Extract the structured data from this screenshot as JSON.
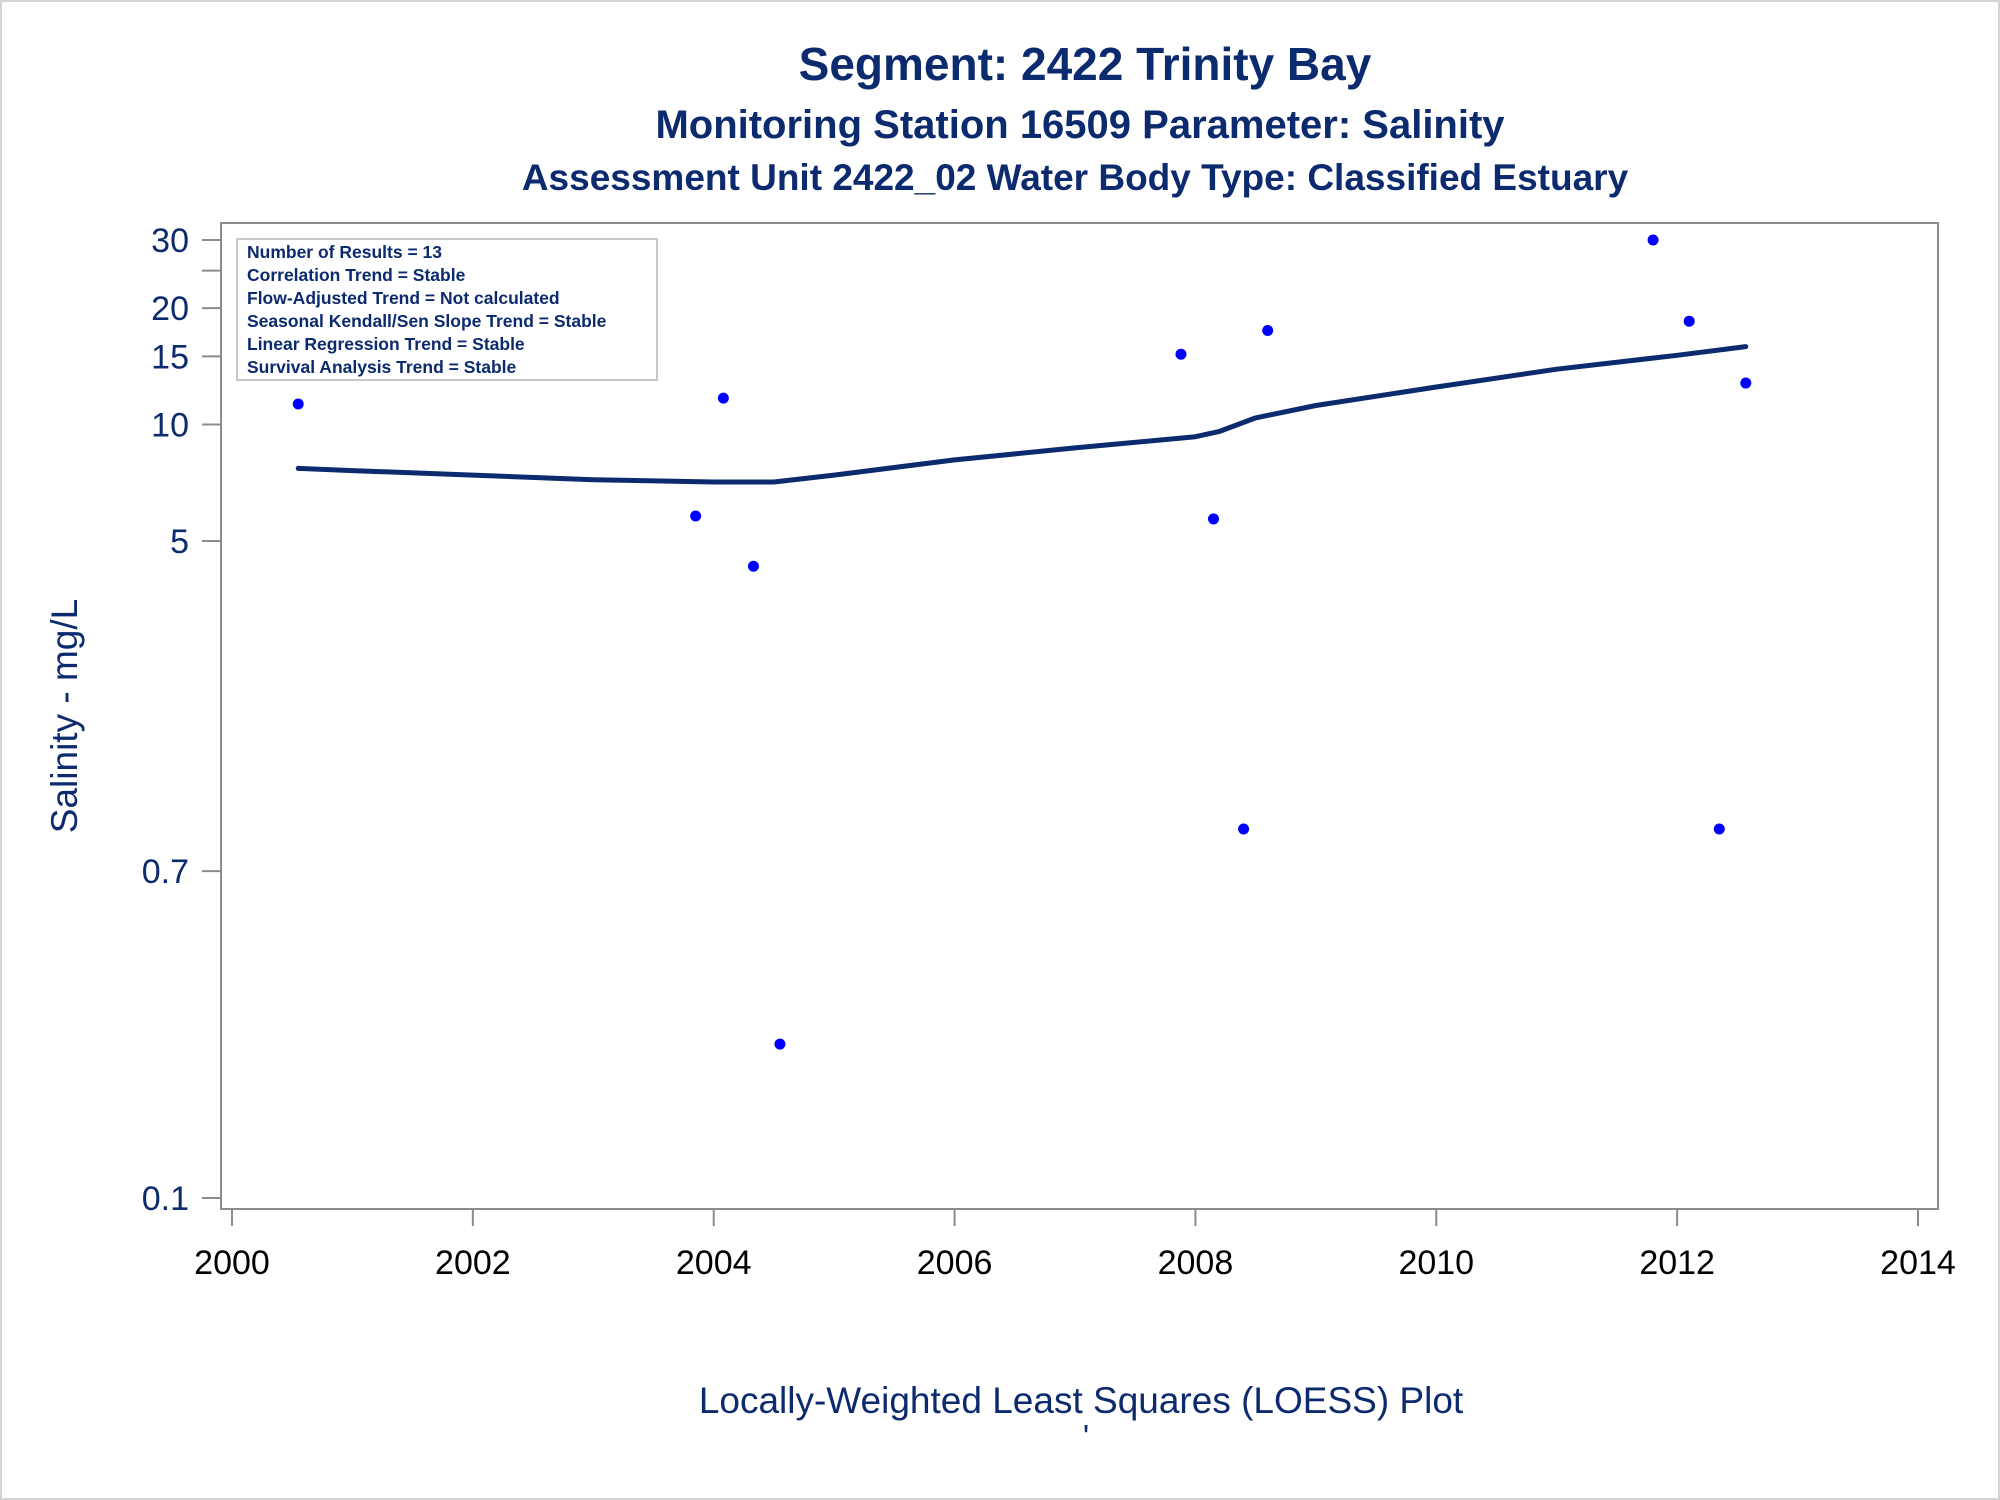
{
  "chart_data": {
    "type": "scatter",
    "title": "Segment: 2422  Trinity Bay",
    "subtitle": "Monitoring Station 16509 Parameter: Salinity",
    "subtitle2": "Assessment Unit 2422_02   Water Body Type: Classified Estuary",
    "xlabel": "Locally-Weighted Least Squares (LOESS) Plot",
    "ylabel": "Salinity - mg/L",
    "footnote_mark": "'",
    "x_scale": "linear",
    "y_scale": "log",
    "xlim": [
      2000,
      2014
    ],
    "ylim": [
      0.1,
      30
    ],
    "x_ticks": [
      2000,
      2002,
      2004,
      2006,
      2008,
      2010,
      2012,
      2014
    ],
    "x_tick_labels": [
      "2000",
      "2002",
      "2004",
      "2006",
      "2008",
      "2010",
      "2012",
      "2014"
    ],
    "y_ticks": [
      0.1,
      0.7,
      5,
      10,
      15,
      20,
      25,
      30
    ],
    "y_tick_labels": [
      "0.1",
      "0.7",
      "5",
      "10",
      "15",
      "20",
      "",
      "30"
    ],
    "grid": false,
    "legend": "none",
    "inset_placement": "top-left",
    "inset_lines": [
      "Number of Results = 13",
      "Correlation Trend = Stable",
      "Flow-Adjusted Trend = Not calculated",
      "Seasonal Kendall/Sen Slope Trend = Stable",
      "Linear Regression Trend = Stable",
      "Survival Analysis Trend = Stable"
    ],
    "points": [
      {
        "x": 2000.55,
        "y": 11.3
      },
      {
        "x": 2003.85,
        "y": 5.8
      },
      {
        "x": 2004.08,
        "y": 11.7
      },
      {
        "x": 2004.33,
        "y": 4.3
      },
      {
        "x": 2004.55,
        "y": 0.25
      },
      {
        "x": 2007.88,
        "y": 15.2
      },
      {
        "x": 2008.15,
        "y": 5.7
      },
      {
        "x": 2008.4,
        "y": 0.9
      },
      {
        "x": 2008.6,
        "y": 17.5
      },
      {
        "x": 2011.8,
        "y": 30
      },
      {
        "x": 2012.1,
        "y": 18.5
      },
      {
        "x": 2012.35,
        "y": 0.9
      },
      {
        "x": 2012.57,
        "y": 12.8
      }
    ],
    "loess_line": {
      "x": [
        2000.55,
        2001.0,
        2002.0,
        2003.0,
        2004.0,
        2004.5,
        2005.0,
        2006.0,
        2007.0,
        2008.0,
        2008.2,
        2008.5,
        2009.0,
        2010.0,
        2011.0,
        2012.0,
        2012.57
      ],
      "y": [
        7.7,
        7.6,
        7.4,
        7.2,
        7.1,
        7.1,
        7.4,
        8.1,
        8.7,
        9.3,
        9.6,
        10.4,
        11.2,
        12.5,
        13.9,
        15.1,
        15.9
      ]
    },
    "colors": {
      "points": "#0000ff",
      "line": "#0c2a6e",
      "text": "#0c2a6e",
      "frame": "#8c8c8c",
      "inset_border": "#c8c8c8",
      "x_tick_labels": "#000000"
    }
  }
}
